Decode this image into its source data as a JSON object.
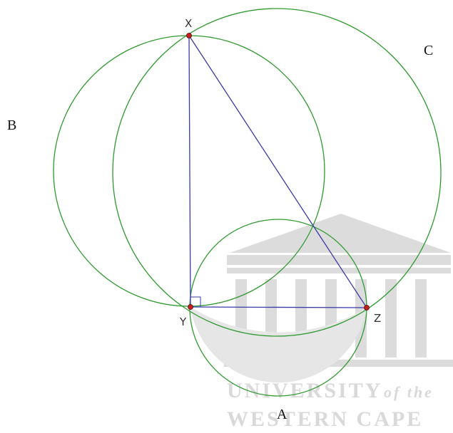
{
  "points": {
    "X": "X",
    "Y": "Y",
    "Z": "Z"
  },
  "regions": {
    "A": "A",
    "B": "B",
    "C": "C"
  },
  "watermark": {
    "line1": "UNIVERSITY",
    "line1_suffix": "of the",
    "line2": "WESTERN CAPE"
  },
  "colors": {
    "circle_stroke": "#2f9a2f",
    "triangle_stroke": "#3a3aa8",
    "lune_fill": "#e6e6e6",
    "point_fill": "#c0201f",
    "watermark": "#d9d9d9"
  }
}
